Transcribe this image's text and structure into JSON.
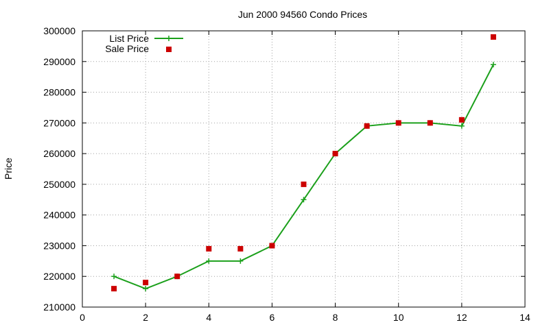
{
  "chart_data": {
    "type": "line",
    "title": "Jun 2000 94560 Condo Prices",
    "xlabel": "",
    "ylabel": "Price",
    "xlim": [
      0,
      14
    ],
    "ylim": [
      210000,
      300000
    ],
    "xticks": [
      "0",
      "2",
      "4",
      "6",
      "8",
      "10",
      "12",
      "14"
    ],
    "yticks": [
      "210000",
      "220000",
      "230000",
      "240000",
      "250000",
      "260000",
      "270000",
      "280000",
      "290000",
      "300000"
    ],
    "grid": true,
    "legend_position": "top-left",
    "x": [
      1,
      2,
      3,
      4,
      5,
      6,
      7,
      8,
      9,
      10,
      11,
      12,
      13
    ],
    "series": [
      {
        "name": "List Price",
        "style": "line-with-plus-markers",
        "color": "#1ba01b",
        "values": [
          220000,
          216000,
          220000,
          225000,
          225000,
          230000,
          245000,
          260000,
          269000,
          270000,
          270000,
          269000,
          289000
        ]
      },
      {
        "name": "Sale Price",
        "style": "square-markers",
        "color": "#cc0000",
        "values": [
          216000,
          218000,
          220000,
          229000,
          229000,
          230000,
          250000,
          260000,
          269000,
          270000,
          270000,
          271000,
          298000
        ]
      }
    ]
  }
}
